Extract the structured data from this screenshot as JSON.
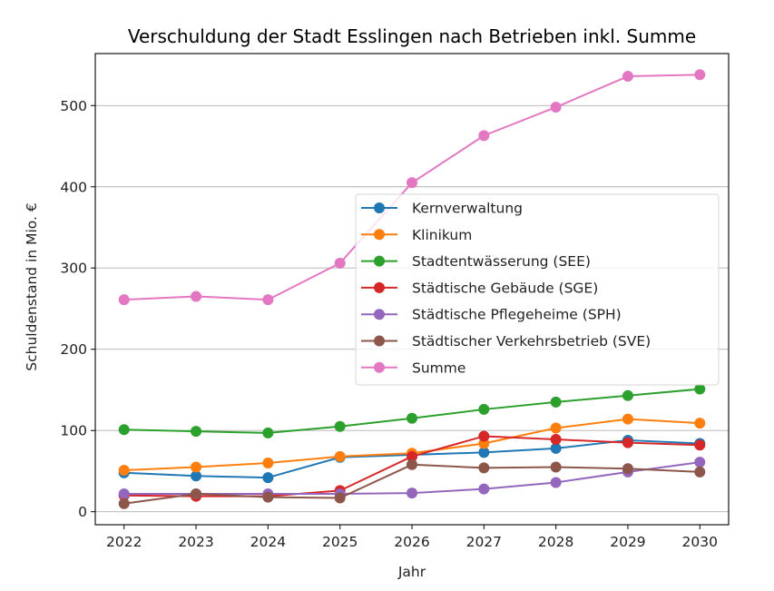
{
  "chart_data": {
    "type": "line",
    "title": "Verschuldung der Stadt Esslingen nach Betrieben inkl. Summe",
    "xlabel": "Jahr",
    "ylabel": "Schuldenstand in Mio. €",
    "x": [
      2022,
      2023,
      2024,
      2025,
      2026,
      2027,
      2028,
      2029,
      2030
    ],
    "x_tick_labels": [
      "2022",
      "2023",
      "2024",
      "2025",
      "2026",
      "2027",
      "2028",
      "2029",
      "2030"
    ],
    "y_ticks": [
      0,
      100,
      200,
      300,
      400,
      500
    ],
    "y_tick_labels": [
      "0",
      "100",
      "200",
      "300",
      "400",
      "500"
    ],
    "xlim": [
      2021.6,
      2030.4
    ],
    "ylim": [
      -16,
      564
    ],
    "grid": "y",
    "legend_position": "center-right",
    "marker": "circle",
    "series": [
      {
        "name": "Kernverwaltung",
        "color": "#1f77b4",
        "values": [
          48,
          44,
          42,
          67,
          70,
          73,
          78,
          88,
          84
        ]
      },
      {
        "name": "Klinikum",
        "color": "#ff7f0e",
        "values": [
          51,
          55,
          60,
          68,
          72,
          84,
          103,
          114,
          109
        ]
      },
      {
        "name": "Stadtentwässerung (SEE)",
        "color": "#2ca02c",
        "values": [
          101,
          99,
          97,
          105,
          115,
          126,
          135,
          143,
          151
        ]
      },
      {
        "name": "Städtische Gebäude (SGE)",
        "color": "#d62728",
        "values": [
          20,
          19,
          19,
          26,
          68,
          93,
          89,
          85,
          82
        ]
      },
      {
        "name": "Städtische Pflegeheime (SPH)",
        "color": "#9467bd",
        "values": [
          22,
          22,
          22,
          22,
          23,
          28,
          36,
          49,
          61
        ]
      },
      {
        "name": "Städtischer Verkehrsbetrieb (SVE)",
        "color": "#8c564b",
        "values": [
          10,
          22,
          18,
          17,
          58,
          54,
          55,
          53,
          49
        ]
      },
      {
        "name": "Summe",
        "color": "#e377c2",
        "values": [
          261,
          265,
          261,
          306,
          405,
          463,
          498,
          536,
          538
        ]
      }
    ]
  }
}
